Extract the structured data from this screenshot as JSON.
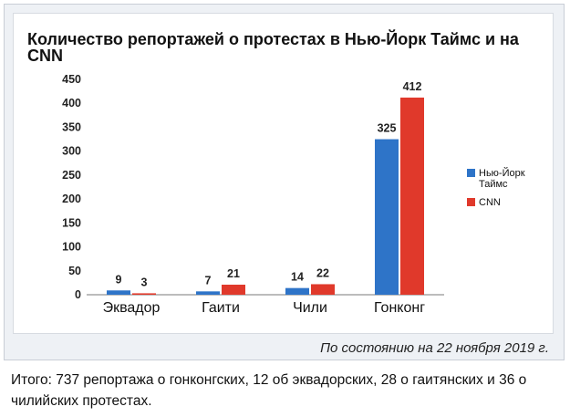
{
  "chart_data": {
    "type": "bar",
    "title": "Количество репортажей о протестах в Нью-Йорк Таймс и на CNN",
    "categories": [
      "Эквадор",
      "Гаити",
      "Чили",
      "Гонконг"
    ],
    "series": [
      {
        "name": "Нью-Йорк Таймс",
        "values": [
          9,
          7,
          14,
          325
        ],
        "color": "#2e74c8"
      },
      {
        "name": "CNN",
        "values": [
          3,
          21,
          22,
          412
        ],
        "color": "#e0392b"
      }
    ],
    "ylim": [
      0,
      450
    ],
    "yticks": [
      "0",
      "50",
      "100",
      "150",
      "200",
      "250",
      "300",
      "350",
      "400",
      "450"
    ],
    "xlabel": "",
    "ylabel": "",
    "grid": false,
    "legend": "right"
  },
  "footnote": "По состоянию на 22 ноября 2019 г.",
  "caption": "Итого: 737 репортажа о гонконгских, 12 об эквадорских, 28 о гаитянских и 36 о чилийских протестах."
}
